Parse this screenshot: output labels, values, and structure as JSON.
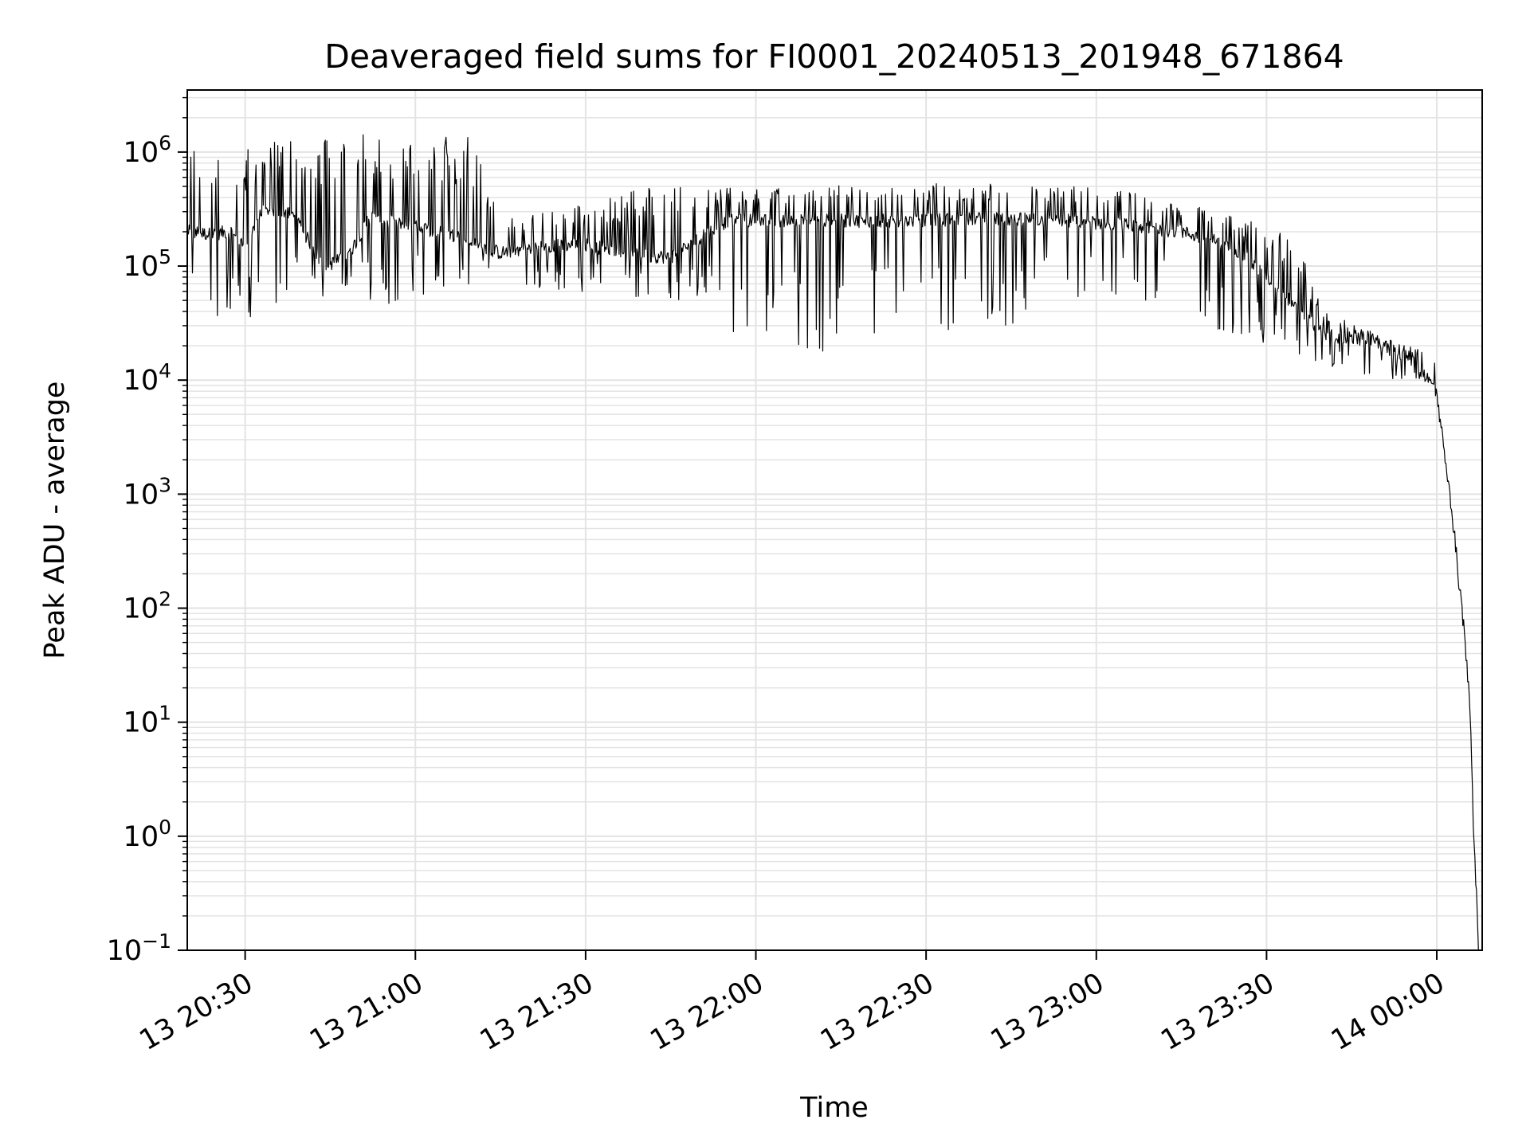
{
  "chart_data": {
    "type": "line",
    "title": "Deaveraged field sums for FI0001_20240513_201948_671864",
    "xlabel": "Time",
    "ylabel": "Peak ADU - average",
    "yscale": "log",
    "xlim": [
      "2024-05-13 20:19:48",
      "2024-05-14 00:08:00"
    ],
    "ylim": [
      0.1,
      3500000
    ],
    "grid": "on (major and minor, light gray)",
    "line_color": "#000000",
    "x_ticks": [
      {
        "label": "13 20:30",
        "time": "2024-05-13 20:30:00"
      },
      {
        "label": "13 21:00",
        "time": "2024-05-13 21:00:00"
      },
      {
        "label": "13 21:30",
        "time": "2024-05-13 21:30:00"
      },
      {
        "label": "13 22:00",
        "time": "2024-05-13 22:00:00"
      },
      {
        "label": "13 22:30",
        "time": "2024-05-13 22:30:00"
      },
      {
        "label": "13 23:00",
        "time": "2024-05-13 23:00:00"
      },
      {
        "label": "13 23:30",
        "time": "2024-05-13 23:30:00"
      },
      {
        "label": "14 00:00",
        "time": "2024-05-14 00:00:00"
      }
    ],
    "y_ticks": [
      {
        "base": "10",
        "exp": "−1",
        "value": 0.1
      },
      {
        "base": "10",
        "exp": "0",
        "value": 1
      },
      {
        "base": "10",
        "exp": "1",
        "value": 10
      },
      {
        "base": "10",
        "exp": "2",
        "value": 100
      },
      {
        "base": "10",
        "exp": "3",
        "value": 1000
      },
      {
        "base": "10",
        "exp": "4",
        "value": 10000
      },
      {
        "base": "10",
        "exp": "5",
        "value": 100000
      },
      {
        "base": "10",
        "exp": "6",
        "value": 1000000
      }
    ],
    "series": [
      {
        "envelope_description": "dense noisy trace; baseline and spike envelope",
        "baseline": [
          [
            "2024-05-13 20:20",
            200000
          ],
          [
            "2024-05-13 20:24",
            190000
          ],
          [
            "2024-05-13 20:27",
            200000
          ],
          [
            "2024-05-13 20:30",
            150000
          ],
          [
            "2024-05-13 20:33",
            300000
          ],
          [
            "2024-05-13 20:38",
            300000
          ],
          [
            "2024-05-13 20:44",
            100000
          ],
          [
            "2024-05-13 20:48",
            120000
          ],
          [
            "2024-05-13 20:52",
            270000
          ],
          [
            "2024-05-13 21:00",
            220000
          ],
          [
            "2024-05-13 21:08",
            180000
          ],
          [
            "2024-05-13 21:15",
            130000
          ],
          [
            "2024-05-13 21:22",
            150000
          ],
          [
            "2024-05-13 21:30",
            155000
          ],
          [
            "2024-05-13 21:38",
            125000
          ],
          [
            "2024-05-13 21:45",
            120000
          ],
          [
            "2024-05-13 21:55",
            250000
          ],
          [
            "2024-05-13 22:10",
            250000
          ],
          [
            "2024-05-13 22:25",
            250000
          ],
          [
            "2024-05-13 22:40",
            260000
          ],
          [
            "2024-05-13 22:55",
            250000
          ],
          [
            "2024-05-13 23:05",
            230000
          ],
          [
            "2024-05-13 23:15",
            200000
          ],
          [
            "2024-05-13 23:24",
            150000
          ],
          [
            "2024-05-13 23:30",
            80000
          ],
          [
            "2024-05-13 23:36",
            40000
          ],
          [
            "2024-05-13 23:40",
            25000
          ],
          [
            "2024-05-13 23:48",
            22000
          ],
          [
            "2024-05-13 23:56",
            15000
          ],
          [
            "2024-05-14 00:00",
            8000
          ],
          [
            "2024-05-14 00:01",
            3000
          ],
          [
            "2024-05-14 00:02",
            1200
          ],
          [
            "2024-05-14 00:03",
            500
          ],
          [
            "2024-05-14 00:04",
            150
          ],
          [
            "2024-05-14 00:05",
            50
          ],
          [
            "2024-05-14 00:06",
            10
          ],
          [
            "2024-05-14 00:06:30",
            1
          ],
          [
            "2024-05-14 00:07",
            0.3
          ]
        ],
        "peaks": [
          [
            "2024-05-13 20:20",
            1200000
          ],
          [
            "2024-05-13 20:25",
            900000
          ],
          [
            "2024-05-13 20:34",
            1300000
          ],
          [
            "2024-05-13 20:40",
            1300000
          ],
          [
            "2024-05-13 20:50",
            1500000
          ],
          [
            "2024-05-13 20:57",
            1100000
          ],
          [
            "2024-05-13 21:04",
            1500000
          ],
          [
            "2024-05-13 21:10",
            1500000
          ],
          [
            "2024-05-13 21:15",
            300000
          ],
          [
            "2024-05-13 21:25",
            300000
          ],
          [
            "2024-05-13 21:40",
            500000
          ],
          [
            "2024-05-13 22:00",
            480000
          ],
          [
            "2024-05-13 22:30",
            540000
          ],
          [
            "2024-05-13 23:00",
            500000
          ],
          [
            "2024-05-13 23:20",
            330000
          ],
          [
            "2024-05-13 23:35",
            180000
          ],
          [
            "2024-05-13 23:40",
            40000
          ],
          [
            "2024-05-13 23:55",
            20000
          ]
        ],
        "troughs": [
          [
            "2024-05-13 20:45",
            35000
          ],
          [
            "2024-05-13 21:10",
            70000
          ],
          [
            "2024-05-13 21:45",
            50000
          ],
          [
            "2024-05-13 21:55",
            22000
          ],
          [
            "2024-05-13 22:05",
            20000
          ],
          [
            "2024-05-13 22:13",
            15000
          ],
          [
            "2024-05-13 22:20",
            22000
          ],
          [
            "2024-05-13 22:30",
            25000
          ],
          [
            "2024-05-13 22:45",
            30000
          ],
          [
            "2024-05-13 23:00",
            60000
          ],
          [
            "2024-05-13 23:36",
            15000
          ],
          [
            "2024-05-13 23:48",
            10000
          ]
        ]
      }
    ]
  }
}
